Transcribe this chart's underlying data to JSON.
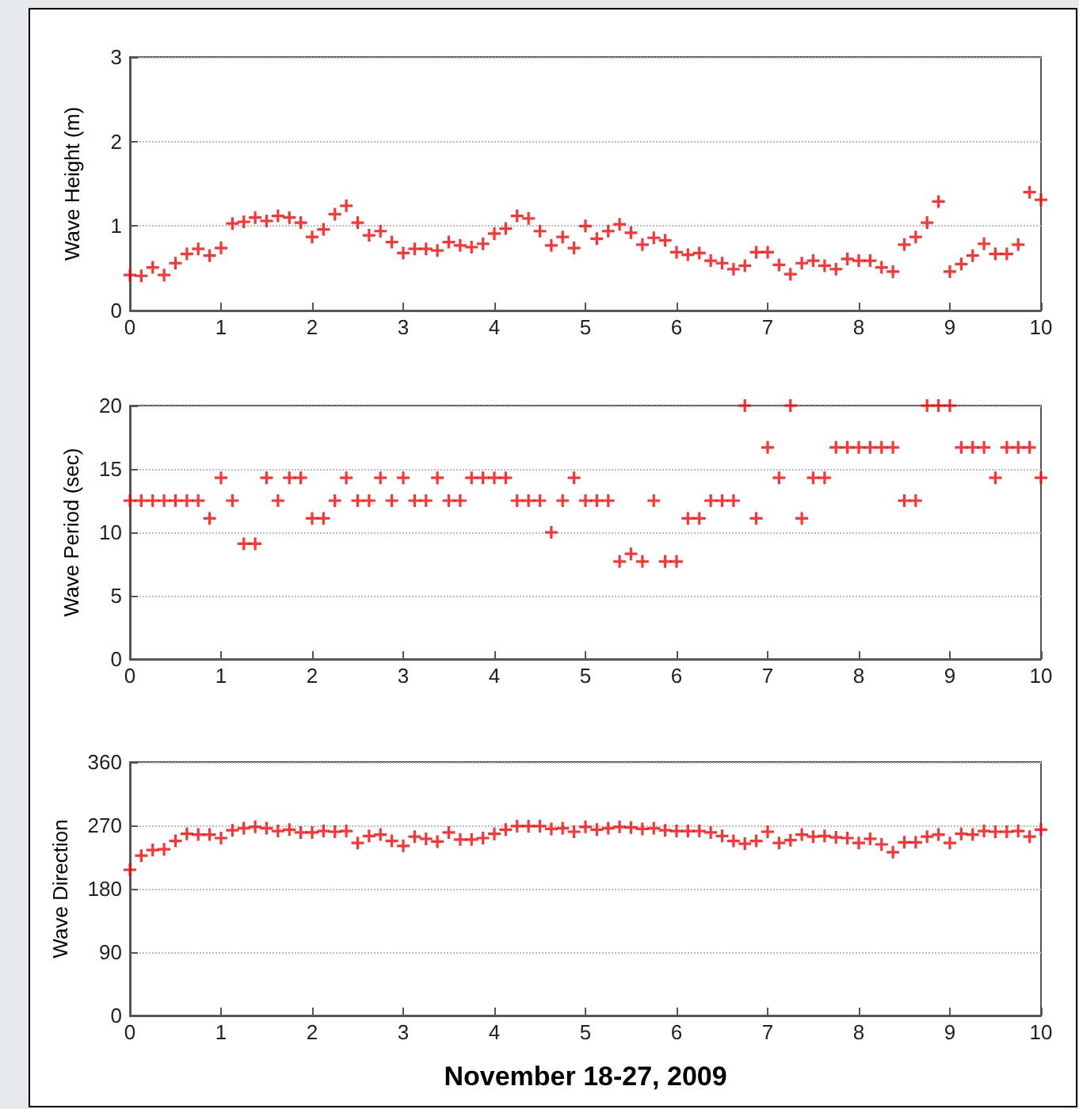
{
  "chart_data": [
    {
      "type": "scatter",
      "ylabel": "Wave Height (m)",
      "x": [
        0,
        0.125,
        0.25,
        0.375,
        0.5,
        0.625,
        0.75,
        0.875,
        1,
        1.125,
        1.25,
        1.375,
        1.5,
        1.625,
        1.75,
        1.875,
        2,
        2.125,
        2.25,
        2.375,
        2.5,
        2.625,
        2.75,
        2.875,
        3,
        3.125,
        3.25,
        3.375,
        3.5,
        3.625,
        3.75,
        3.875,
        4,
        4.125,
        4.25,
        4.375,
        4.5,
        4.625,
        4.75,
        4.875,
        5,
        5.125,
        5.25,
        5.375,
        5.5,
        5.625,
        5.75,
        5.875,
        6,
        6.125,
        6.25,
        6.375,
        6.5,
        6.625,
        6.75,
        6.875,
        7,
        7.125,
        7.25,
        7.375,
        7.5,
        7.625,
        7.75,
        7.875,
        8,
        8.125,
        8.25,
        8.375,
        8.5,
        8.625,
        8.75,
        8.875,
        9,
        9.125,
        9.25,
        9.375,
        9.5,
        9.625,
        9.75,
        9.875,
        10
      ],
      "values": [
        0.42,
        0.41,
        0.51,
        0.42,
        0.56,
        0.67,
        0.73,
        0.65,
        0.74,
        1.03,
        1.05,
        1.1,
        1.06,
        1.12,
        1.1,
        1.04,
        0.87,
        0.96,
        1.14,
        1.24,
        1.04,
        0.89,
        0.94,
        0.81,
        0.68,
        0.73,
        0.73,
        0.71,
        0.81,
        0.77,
        0.75,
        0.79,
        0.91,
        0.97,
        1.12,
        1.09,
        0.94,
        0.77,
        0.87,
        0.74,
        1.0,
        0.85,
        0.94,
        1.02,
        0.92,
        0.78,
        0.86,
        0.83,
        0.69,
        0.66,
        0.68,
        0.59,
        0.56,
        0.49,
        0.53,
        0.69,
        0.69,
        0.54,
        0.43,
        0.56,
        0.59,
        0.53,
        0.49,
        0.61,
        0.59,
        0.59,
        0.51,
        0.46,
        0.78,
        0.87,
        1.04,
        1.29,
        0.46,
        0.55,
        0.65,
        0.79,
        0.67,
        0.67,
        0.78,
        1.4,
        1.31
      ],
      "color": "#ff0000",
      "marker": "cross",
      "grid": "y",
      "xlim": [
        0,
        10
      ],
      "xticks": [
        0,
        1,
        2,
        3,
        4,
        5,
        6,
        7,
        8,
        9,
        10
      ],
      "ylim": [
        0,
        3
      ],
      "yticks": [
        0,
        1,
        2,
        3
      ]
    },
    {
      "type": "scatter",
      "ylabel": "Wave Period (sec)",
      "x": [
        0,
        0.125,
        0.25,
        0.375,
        0.5,
        0.625,
        0.75,
        0.875,
        1,
        1.125,
        1.25,
        1.375,
        1.5,
        1.625,
        1.75,
        1.875,
        2,
        2.125,
        2.25,
        2.375,
        2.5,
        2.625,
        2.75,
        2.875,
        3,
        3.125,
        3.25,
        3.375,
        3.5,
        3.625,
        3.75,
        3.875,
        4,
        4.125,
        4.25,
        4.375,
        4.5,
        4.625,
        4.75,
        4.875,
        5,
        5.125,
        5.25,
        5.375,
        5.5,
        5.625,
        5.75,
        5.875,
        6,
        6.125,
        6.25,
        6.375,
        6.5,
        6.625,
        6.75,
        6.875,
        7,
        7.125,
        7.25,
        7.375,
        7.5,
        7.625,
        7.75,
        7.875,
        8,
        8.125,
        8.25,
        8.375,
        8.5,
        8.625,
        8.75,
        8.875,
        9,
        9.125,
        9.25,
        9.375,
        9.5,
        9.625,
        9.75,
        9.875,
        10
      ],
      "values": [
        12.5,
        12.5,
        12.5,
        12.5,
        12.5,
        12.5,
        12.5,
        11.1,
        14.3,
        12.5,
        9.1,
        9.1,
        14.3,
        12.5,
        14.3,
        14.3,
        11.1,
        11.1,
        12.5,
        14.3,
        12.5,
        12.5,
        14.3,
        12.5,
        14.3,
        12.5,
        12.5,
        14.3,
        12.5,
        12.5,
        14.3,
        14.3,
        14.3,
        14.3,
        12.5,
        12.5,
        12.5,
        10,
        12.5,
        14.3,
        12.5,
        12.5,
        12.5,
        7.7,
        8.3,
        7.7,
        12.5,
        7.7,
        7.7,
        11.1,
        11.1,
        12.5,
        12.5,
        12.5,
        20,
        11.1,
        16.7,
        14.3,
        20,
        11.1,
        14.3,
        14.3,
        16.7,
        16.7,
        16.7,
        16.7,
        16.7,
        16.7,
        12.5,
        12.5,
        20,
        20,
        20,
        16.7,
        16.7,
        16.7,
        14.3,
        16.7,
        16.7,
        16.7,
        14.3
      ],
      "color": "#ff0000",
      "marker": "cross",
      "grid": "y",
      "xlim": [
        0,
        10
      ],
      "xticks": [
        0,
        1,
        2,
        3,
        4,
        5,
        6,
        7,
        8,
        9,
        10
      ],
      "ylim": [
        0,
        20
      ],
      "yticks": [
        0,
        5,
        10,
        15,
        20
      ]
    },
    {
      "type": "scatter",
      "ylabel": "Wave Direction",
      "xlabel": "November 18-27, 2009",
      "x": [
        0,
        0.125,
        0.25,
        0.375,
        0.5,
        0.625,
        0.75,
        0.875,
        1,
        1.125,
        1.25,
        1.375,
        1.5,
        1.625,
        1.75,
        1.875,
        2,
        2.125,
        2.25,
        2.375,
        2.5,
        2.625,
        2.75,
        2.875,
        3,
        3.125,
        3.25,
        3.375,
        3.5,
        3.625,
        3.75,
        3.875,
        4,
        4.125,
        4.25,
        4.375,
        4.5,
        4.625,
        4.75,
        4.875,
        5,
        5.125,
        5.25,
        5.375,
        5.5,
        5.625,
        5.75,
        5.875,
        6,
        6.125,
        6.25,
        6.375,
        6.5,
        6.625,
        6.75,
        6.875,
        7,
        7.125,
        7.25,
        7.375,
        7.5,
        7.625,
        7.75,
        7.875,
        8,
        8.125,
        8.25,
        8.375,
        8.5,
        8.625,
        8.75,
        8.875,
        9,
        9.125,
        9.25,
        9.375,
        9.5,
        9.625,
        9.75,
        9.875,
        10
      ],
      "values": [
        207,
        227,
        235,
        236,
        248,
        258,
        257,
        257,
        252,
        263,
        266,
        268,
        266,
        262,
        264,
        260,
        260,
        262,
        261,
        262,
        245,
        255,
        257,
        248,
        241,
        254,
        251,
        247,
        260,
        250,
        250,
        252,
        258,
        264,
        269,
        269,
        269,
        265,
        266,
        261,
        268,
        264,
        266,
        268,
        267,
        265,
        266,
        263,
        262,
        262,
        262,
        260,
        255,
        248,
        244,
        248,
        261,
        245,
        249,
        257,
        254,
        255,
        253,
        252,
        245,
        251,
        243,
        232,
        246,
        246,
        254,
        257,
        245,
        258,
        257,
        262,
        261,
        261,
        262,
        254,
        264
      ],
      "color": "#ff0000",
      "marker": "cross",
      "grid": "y",
      "xlim": [
        0,
        10
      ],
      "xticks": [
        0,
        1,
        2,
        3,
        4,
        5,
        6,
        7,
        8,
        9,
        10
      ],
      "ylim": [
        0,
        360
      ],
      "yticks": [
        0,
        90,
        180,
        270,
        360
      ]
    }
  ]
}
